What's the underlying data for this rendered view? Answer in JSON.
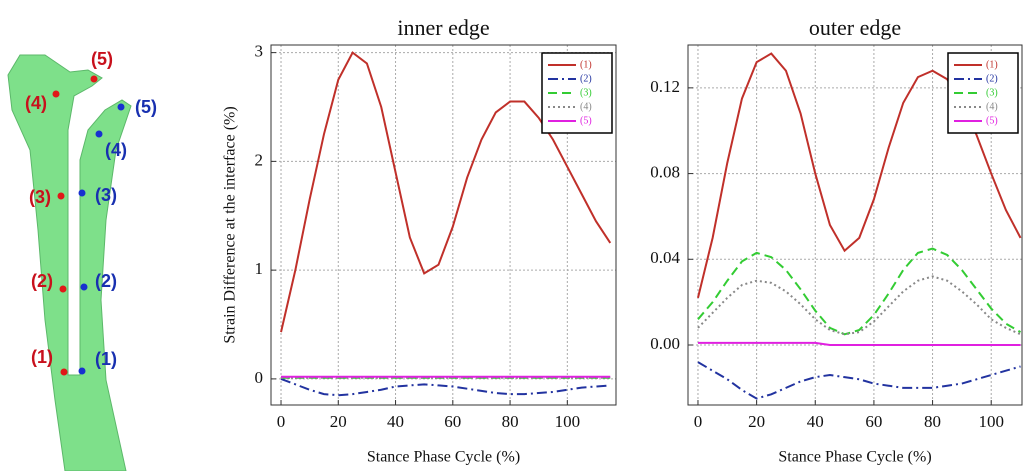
{
  "diagram": {
    "red_labels": [
      "(1)",
      "(2)",
      "(3)",
      "(4)",
      "(5)"
    ],
    "blue_labels": [
      "(1)",
      "(2)",
      "(3)",
      "(4)",
      "(5)"
    ]
  },
  "chart_data": [
    {
      "type": "line",
      "title": "inner edge",
      "xlabel": "Stance Phase Cycle (%)",
      "ylabel": "Strain Difference at the interface (%)",
      "x": [
        0,
        5,
        10,
        15,
        20,
        25,
        30,
        35,
        40,
        45,
        50,
        55,
        60,
        65,
        70,
        75,
        80,
        85,
        90,
        95,
        100,
        105,
        110,
        115
      ],
      "xlim": [
        -3.5,
        117
      ],
      "xticks": [
        0,
        20,
        40,
        60,
        80,
        100
      ],
      "ylim": [
        -0.24,
        3.07
      ],
      "yticks": [
        0,
        1,
        2,
        3
      ],
      "grid": true,
      "legend": "upper right",
      "series": [
        {
          "name": "(1)",
          "color": "#c0302a",
          "style": "solid",
          "values": [
            0.43,
            1.0,
            1.65,
            2.25,
            2.75,
            3.0,
            2.9,
            2.5,
            1.9,
            1.3,
            0.97,
            1.05,
            1.4,
            1.85,
            2.2,
            2.45,
            2.55,
            2.55,
            2.4,
            2.2,
            1.95,
            1.7,
            1.45,
            1.25
          ]
        },
        {
          "name": "(2)",
          "color": "#2233a0",
          "style": "dashdot",
          "values": [
            0,
            -0.05,
            -0.1,
            -0.14,
            -0.15,
            -0.14,
            -0.12,
            -0.1,
            -0.07,
            -0.06,
            -0.05,
            -0.06,
            -0.07,
            -0.09,
            -0.11,
            -0.13,
            -0.14,
            -0.14,
            -0.13,
            -0.12,
            -0.1,
            -0.08,
            -0.07,
            -0.06
          ]
        },
        {
          "name": "(3)",
          "color": "#33cc33",
          "style": "dashed",
          "values": [
            0.01,
            0.01,
            0.01,
            0.01,
            0.01,
            0.01,
            0.01,
            0.01,
            0.01,
            0.01,
            0.01,
            0.01,
            0.01,
            0.01,
            0.01,
            0.01,
            0.01,
            0.01,
            0.01,
            0.01,
            0.01,
            0.01,
            0.01,
            0.01
          ]
        },
        {
          "name": "(4)",
          "color": "#888888",
          "style": "dotted",
          "values": [
            0.01,
            0.01,
            0.01,
            0.01,
            0.01,
            0.01,
            0.01,
            0.01,
            0.01,
            0.01,
            0.01,
            0.01,
            0.01,
            0.01,
            0.01,
            0.01,
            0.01,
            0.01,
            0.01,
            0.01,
            0.01,
            0.01,
            0.01,
            0.01
          ]
        },
        {
          "name": "(5)",
          "color": "#e020e0",
          "style": "solid",
          "values": [
            0.02,
            0.02,
            0.02,
            0.02,
            0.02,
            0.02,
            0.02,
            0.02,
            0.02,
            0.02,
            0.02,
            0.02,
            0.02,
            0.02,
            0.02,
            0.02,
            0.02,
            0.02,
            0.02,
            0.02,
            0.02,
            0.02,
            0.02,
            0.02
          ]
        }
      ]
    },
    {
      "type": "line",
      "title": "outer edge",
      "xlabel": "Stance Phase Cycle (%)",
      "x": [
        0,
        5,
        10,
        15,
        20,
        25,
        30,
        35,
        40,
        45,
        50,
        55,
        60,
        65,
        70,
        75,
        80,
        85,
        90,
        95,
        100,
        105,
        110
      ],
      "xlim": [
        -3.4,
        110.5
      ],
      "xticks": [
        0,
        20,
        40,
        60,
        80,
        100
      ],
      "ylim": [
        -0.028,
        0.14
      ],
      "yticks": [
        {
          "value": 0,
          "label": "0.00"
        },
        0.04,
        0.08,
        0.12
      ],
      "grid": true,
      "legend": "upper right",
      "series": [
        {
          "name": "(1)",
          "color": "#c0302a",
          "style": "solid",
          "values": [
            0.022,
            0.05,
            0.085,
            0.115,
            0.132,
            0.136,
            0.128,
            0.108,
            0.08,
            0.056,
            0.044,
            0.05,
            0.068,
            0.092,
            0.113,
            0.125,
            0.128,
            0.124,
            0.113,
            0.098,
            0.08,
            0.063,
            0.05
          ]
        },
        {
          "name": "(2)",
          "color": "#2233a0",
          "style": "dashdot",
          "values": [
            -0.008,
            -0.012,
            -0.016,
            -0.021,
            -0.025,
            -0.023,
            -0.02,
            -0.017,
            -0.015,
            -0.014,
            -0.015,
            -0.016,
            -0.018,
            -0.019,
            -0.02,
            -0.02,
            -0.02,
            -0.019,
            -0.018,
            -0.016,
            -0.014,
            -0.012,
            -0.01
          ]
        },
        {
          "name": "(3)",
          "color": "#33cc33",
          "style": "dashed",
          "values": [
            0.012,
            0.02,
            0.03,
            0.039,
            0.043,
            0.041,
            0.035,
            0.026,
            0.016,
            0.008,
            0.005,
            0.007,
            0.014,
            0.024,
            0.035,
            0.043,
            0.045,
            0.042,
            0.035,
            0.026,
            0.017,
            0.01,
            0.006
          ]
        },
        {
          "name": "(4)",
          "color": "#888888",
          "style": "dotted",
          "values": [
            0.008,
            0.015,
            0.022,
            0.028,
            0.03,
            0.029,
            0.025,
            0.019,
            0.012,
            0.007,
            0.005,
            0.006,
            0.011,
            0.018,
            0.025,
            0.03,
            0.032,
            0.03,
            0.025,
            0.019,
            0.012,
            0.008,
            0.005
          ]
        },
        {
          "name": "(5)",
          "color": "#e020e0",
          "style": "solid",
          "values": [
            0.001,
            0.001,
            0.001,
            0.001,
            0.001,
            0.001,
            0.001,
            0.001,
            0.001,
            0,
            0,
            0,
            0,
            0,
            0,
            0,
            0,
            0,
            0,
            0,
            0,
            0,
            0
          ]
        }
      ]
    }
  ]
}
